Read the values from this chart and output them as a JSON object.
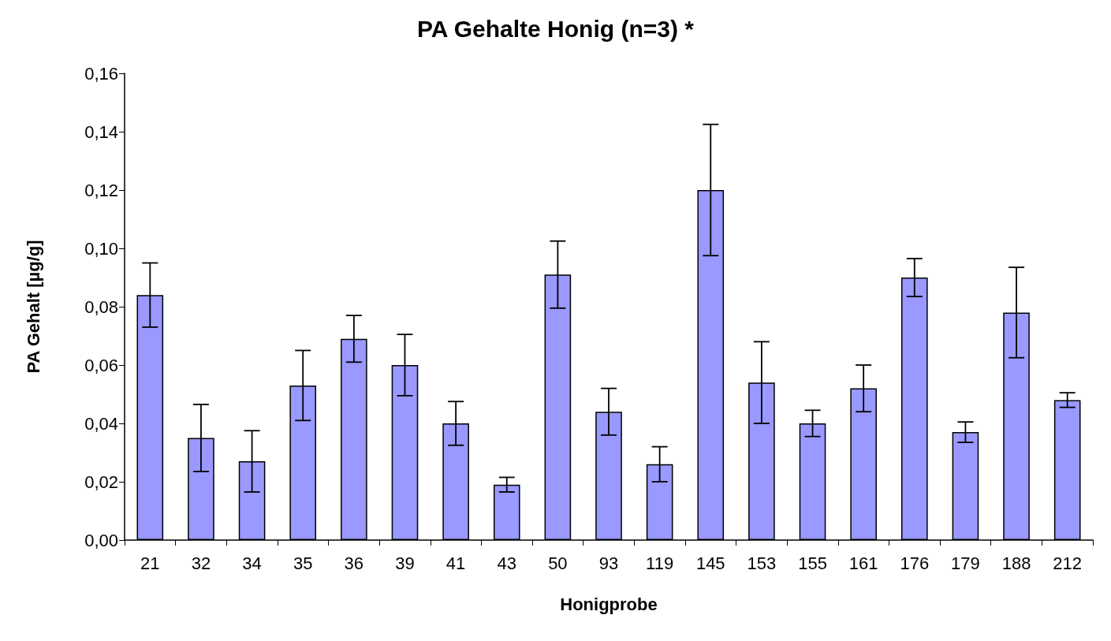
{
  "chart_data": {
    "type": "bar",
    "title": "PA Gehalte Honig (n=3) *",
    "xlabel": "Honigprobe",
    "ylabel": "PA Gehalt [µg/g]",
    "categories": [
      "21",
      "32",
      "34",
      "35",
      "36",
      "39",
      "41",
      "43",
      "50",
      "93",
      "119",
      "145",
      "153",
      "155",
      "161",
      "176",
      "179",
      "188",
      "212"
    ],
    "values": [
      0.084,
      0.035,
      0.027,
      0.053,
      0.069,
      0.06,
      0.04,
      0.019,
      0.091,
      0.044,
      0.026,
      0.12,
      0.054,
      0.04,
      0.052,
      0.09,
      0.037,
      0.078,
      0.048
    ],
    "errors": [
      0.011,
      0.0115,
      0.0105,
      0.012,
      0.008,
      0.0105,
      0.0075,
      0.0025,
      0.0115,
      0.008,
      0.006,
      0.0225,
      0.014,
      0.0045,
      0.008,
      0.0065,
      0.0035,
      0.0155,
      0.0025
    ],
    "color": "#9999ff",
    "ylim": [
      0,
      0.16
    ],
    "yticks": [
      {
        "value": 0,
        "label": "0,00"
      },
      {
        "value": 0.02,
        "label": "0,02"
      },
      {
        "value": 0.04,
        "label": "0,04"
      },
      {
        "value": 0.06,
        "label": "0,06"
      },
      {
        "value": 0.08,
        "label": "0,08"
      },
      {
        "value": 0.1,
        "label": "0,10"
      },
      {
        "value": 0.12,
        "label": "0,12"
      },
      {
        "value": 0.14,
        "label": "0,14"
      },
      {
        "value": 0.16,
        "label": "0,16"
      }
    ],
    "grid": false
  }
}
